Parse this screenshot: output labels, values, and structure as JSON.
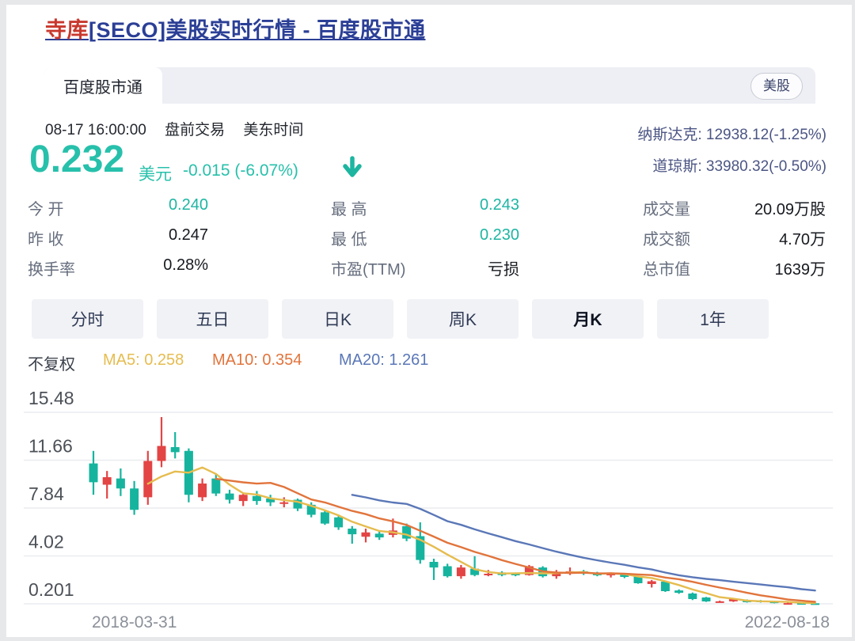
{
  "title": {
    "stock": "寺库",
    "rest": "[SECO]美股实时行情 - 百度股市通"
  },
  "tab_bar": {
    "active_tab": "百度股市通",
    "market_badge": "美股"
  },
  "quote": {
    "time": "08-17 16:00:00",
    "session_label": "盘前交易",
    "timezone_label": "美东时间",
    "price": "0.232",
    "currency_label": "美元",
    "change_text": "-0.015 (-6.07%)",
    "direction": "down"
  },
  "indices": [
    {
      "name": "纳斯达克",
      "quote": "12938.12(-1.25%)"
    },
    {
      "name": "道琼斯",
      "quote": "33980.32(-0.50%)"
    }
  ],
  "stats_columns": [
    {
      "rows": [
        {
          "label": "今 开",
          "value": "0.240",
          "accent": true
        },
        {
          "label": "昨 收",
          "value": "0.247",
          "accent": false
        },
        {
          "label": "换手率",
          "value": "0.28%",
          "accent": false
        }
      ]
    },
    {
      "rows": [
        {
          "label": "最 高",
          "value": "0.243",
          "accent": true
        },
        {
          "label": "最 低",
          "value": "0.230",
          "accent": true
        },
        {
          "label": "市盈(TTM)",
          "value": "亏损",
          "accent": false
        }
      ]
    },
    {
      "rows": [
        {
          "label": "成交量",
          "value": "20.09万股",
          "accent": false
        },
        {
          "label": "成交额",
          "value": "4.70万",
          "accent": false
        },
        {
          "label": "总市值",
          "value": "1639万",
          "accent": false
        }
      ]
    }
  ],
  "period_tabs": [
    {
      "label": "分时",
      "active": false
    },
    {
      "label": "五日",
      "active": false
    },
    {
      "label": "日K",
      "active": false
    },
    {
      "label": "周K",
      "active": false
    },
    {
      "label": "月K",
      "active": true
    },
    {
      "label": "1年",
      "active": false
    }
  ],
  "chart_legend": {
    "adjustment": "不复权",
    "ma_items": [
      {
        "name": "MA5",
        "value": "0.258",
        "color": "#e6bc4f"
      },
      {
        "name": "MA10",
        "value": "0.354",
        "color": "#e1743c"
      },
      {
        "name": "MA20",
        "value": "1.261",
        "color": "#5a77b7"
      }
    ]
  },
  "colors": {
    "up_red": "#e34444",
    "down_green": "#16b49e",
    "price_teal": "#27c0ab",
    "link_blue": "#2b3f96",
    "stock_red": "#c8382d",
    "index_navy": "#4b5584",
    "grid": "#eaecef",
    "tick_text": "#4c5158",
    "date_text": "#8b9099"
  },
  "chart_data": {
    "type": "candlestick",
    "period": "月K",
    "start_date_label": "2018-03-31",
    "end_date_label": "2022-08-18",
    "y_ticks": [
      15.48,
      11.66,
      7.84,
      4.02,
      0.201
    ],
    "ylim": [
      0.201,
      15.48
    ],
    "ma_windows": [
      5,
      10,
      20
    ],
    "candles_ohlc": [
      [
        11.4,
        12.4,
        8.9,
        9.9
      ],
      [
        9.7,
        10.8,
        8.6,
        10.3
      ],
      [
        10.2,
        11.0,
        8.8,
        9.4
      ],
      [
        9.4,
        10.0,
        7.3,
        7.7
      ],
      [
        8.7,
        12.4,
        8.1,
        11.6
      ],
      [
        11.6,
        15.1,
        11.1,
        12.8
      ],
      [
        12.7,
        13.9,
        11.8,
        12.3
      ],
      [
        12.4,
        12.6,
        8.3,
        8.9
      ],
      [
        8.7,
        10.2,
        8.4,
        9.8
      ],
      [
        10.2,
        10.6,
        8.8,
        9.0
      ],
      [
        9.0,
        9.3,
        8.2,
        8.5
      ],
      [
        8.4,
        9.0,
        8.0,
        8.9
      ],
      [
        8.8,
        9.2,
        8.1,
        8.4
      ],
      [
        8.6,
        8.9,
        8.0,
        8.3
      ],
      [
        8.2,
        8.7,
        7.9,
        8.3
      ],
      [
        8.5,
        8.6,
        7.6,
        7.8
      ],
      [
        8.1,
        8.3,
        7.1,
        7.3
      ],
      [
        7.5,
        7.7,
        6.5,
        6.6
      ],
      [
        7.1,
        7.2,
        6.1,
        6.3
      ],
      [
        6.2,
        6.4,
        5.0,
        5.75
      ],
      [
        5.55,
        6.2,
        5.1,
        5.9
      ],
      [
        5.8,
        6.0,
        5.3,
        5.5
      ],
      [
        5.7,
        7.0,
        5.5,
        6.05
      ],
      [
        6.4,
        6.6,
        5.2,
        5.4
      ],
      [
        5.6,
        6.7,
        3.4,
        3.7
      ],
      [
        3.55,
        3.8,
        2.1,
        3.1
      ],
      [
        3.2,
        3.4,
        2.3,
        2.4
      ],
      [
        2.4,
        3.3,
        2.2,
        3.1
      ],
      [
        3.0,
        4.0,
        2.4,
        2.5
      ],
      [
        2.5,
        2.9,
        2.4,
        2.6
      ],
      [
        2.7,
        2.8,
        2.4,
        2.5
      ],
      [
        2.66,
        2.7,
        2.4,
        2.47
      ],
      [
        2.5,
        3.3,
        2.45,
        3.2
      ],
      [
        3.1,
        3.2,
        2.3,
        2.4
      ],
      [
        2.4,
        2.9,
        2.2,
        2.66
      ],
      [
        2.6,
        3.1,
        2.5,
        2.8
      ],
      [
        2.8,
        2.9,
        2.5,
        2.6
      ],
      [
        2.6,
        2.75,
        2.4,
        2.5
      ],
      [
        2.5,
        2.7,
        2.3,
        2.6
      ],
      [
        2.6,
        2.65,
        2.25,
        2.35
      ],
      [
        2.4,
        2.45,
        1.8,
        1.84
      ],
      [
        1.78,
        2.1,
        1.5,
        2.0
      ],
      [
        1.97,
        2.0,
        1.15,
        1.21
      ],
      [
        1.27,
        1.35,
        1.0,
        1.08
      ],
      [
        1.02,
        1.1,
        0.5,
        0.58
      ],
      [
        0.71,
        0.75,
        0.35,
        0.39
      ],
      [
        0.39,
        0.45,
        0.3,
        0.4
      ],
      [
        0.4,
        0.62,
        0.35,
        0.58
      ],
      [
        0.5,
        0.55,
        0.3,
        0.33
      ],
      [
        0.45,
        0.5,
        0.3,
        0.33
      ],
      [
        0.39,
        0.42,
        0.24,
        0.26
      ],
      [
        0.24,
        0.3,
        0.14,
        0.26
      ],
      [
        0.26,
        0.3,
        0.2,
        0.24
      ],
      [
        0.24,
        0.27,
        0.2,
        0.232
      ]
    ]
  }
}
